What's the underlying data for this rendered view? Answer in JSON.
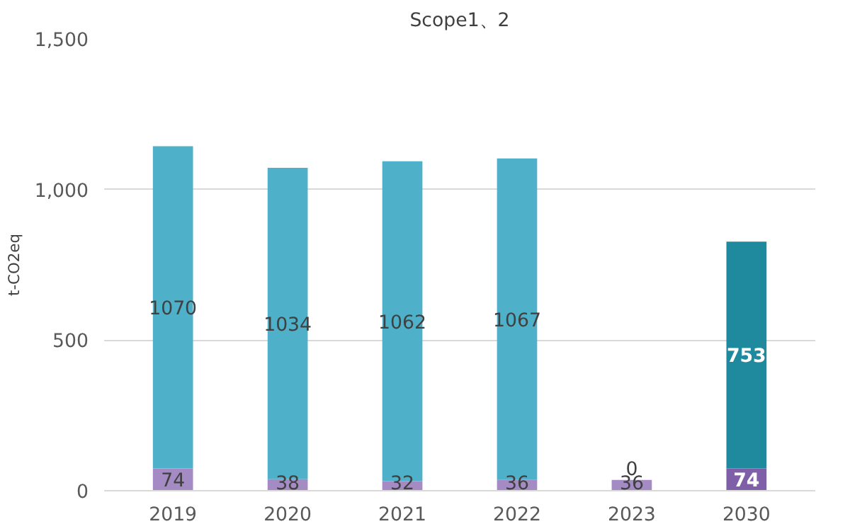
{
  "chart_data": {
    "type": "bar",
    "title": "Scope1、2",
    "ylabel": "t-CO2eq",
    "stacked": true,
    "data_labels": true,
    "grid": "y",
    "categories": [
      "2019",
      "2020",
      "2021",
      "2022",
      "2023",
      "2030"
    ],
    "series": [
      {
        "colors": [
          "#a58bc4",
          "#a58bc4",
          "#a58bc4",
          "#a58bc4",
          "#a58bc4",
          "#7f5fa8"
        ],
        "values": [
          74,
          38,
          32,
          36,
          36,
          74
        ]
      },
      {
        "colors": [
          "#4eb0c9",
          "#4eb0c9",
          "#4eb0c9",
          "#4eb0c9",
          "#4eb0c9",
          "#1f8a9e"
        ],
        "values": [
          1070,
          1034,
          1062,
          1067,
          0,
          753
        ]
      }
    ],
    "ylim": [
      0,
      1500
    ],
    "yticks": [
      0,
      500,
      {
        "value": 1000,
        "label": "1,000"
      },
      {
        "value": 1500,
        "label": "1,500"
      }
    ]
  }
}
